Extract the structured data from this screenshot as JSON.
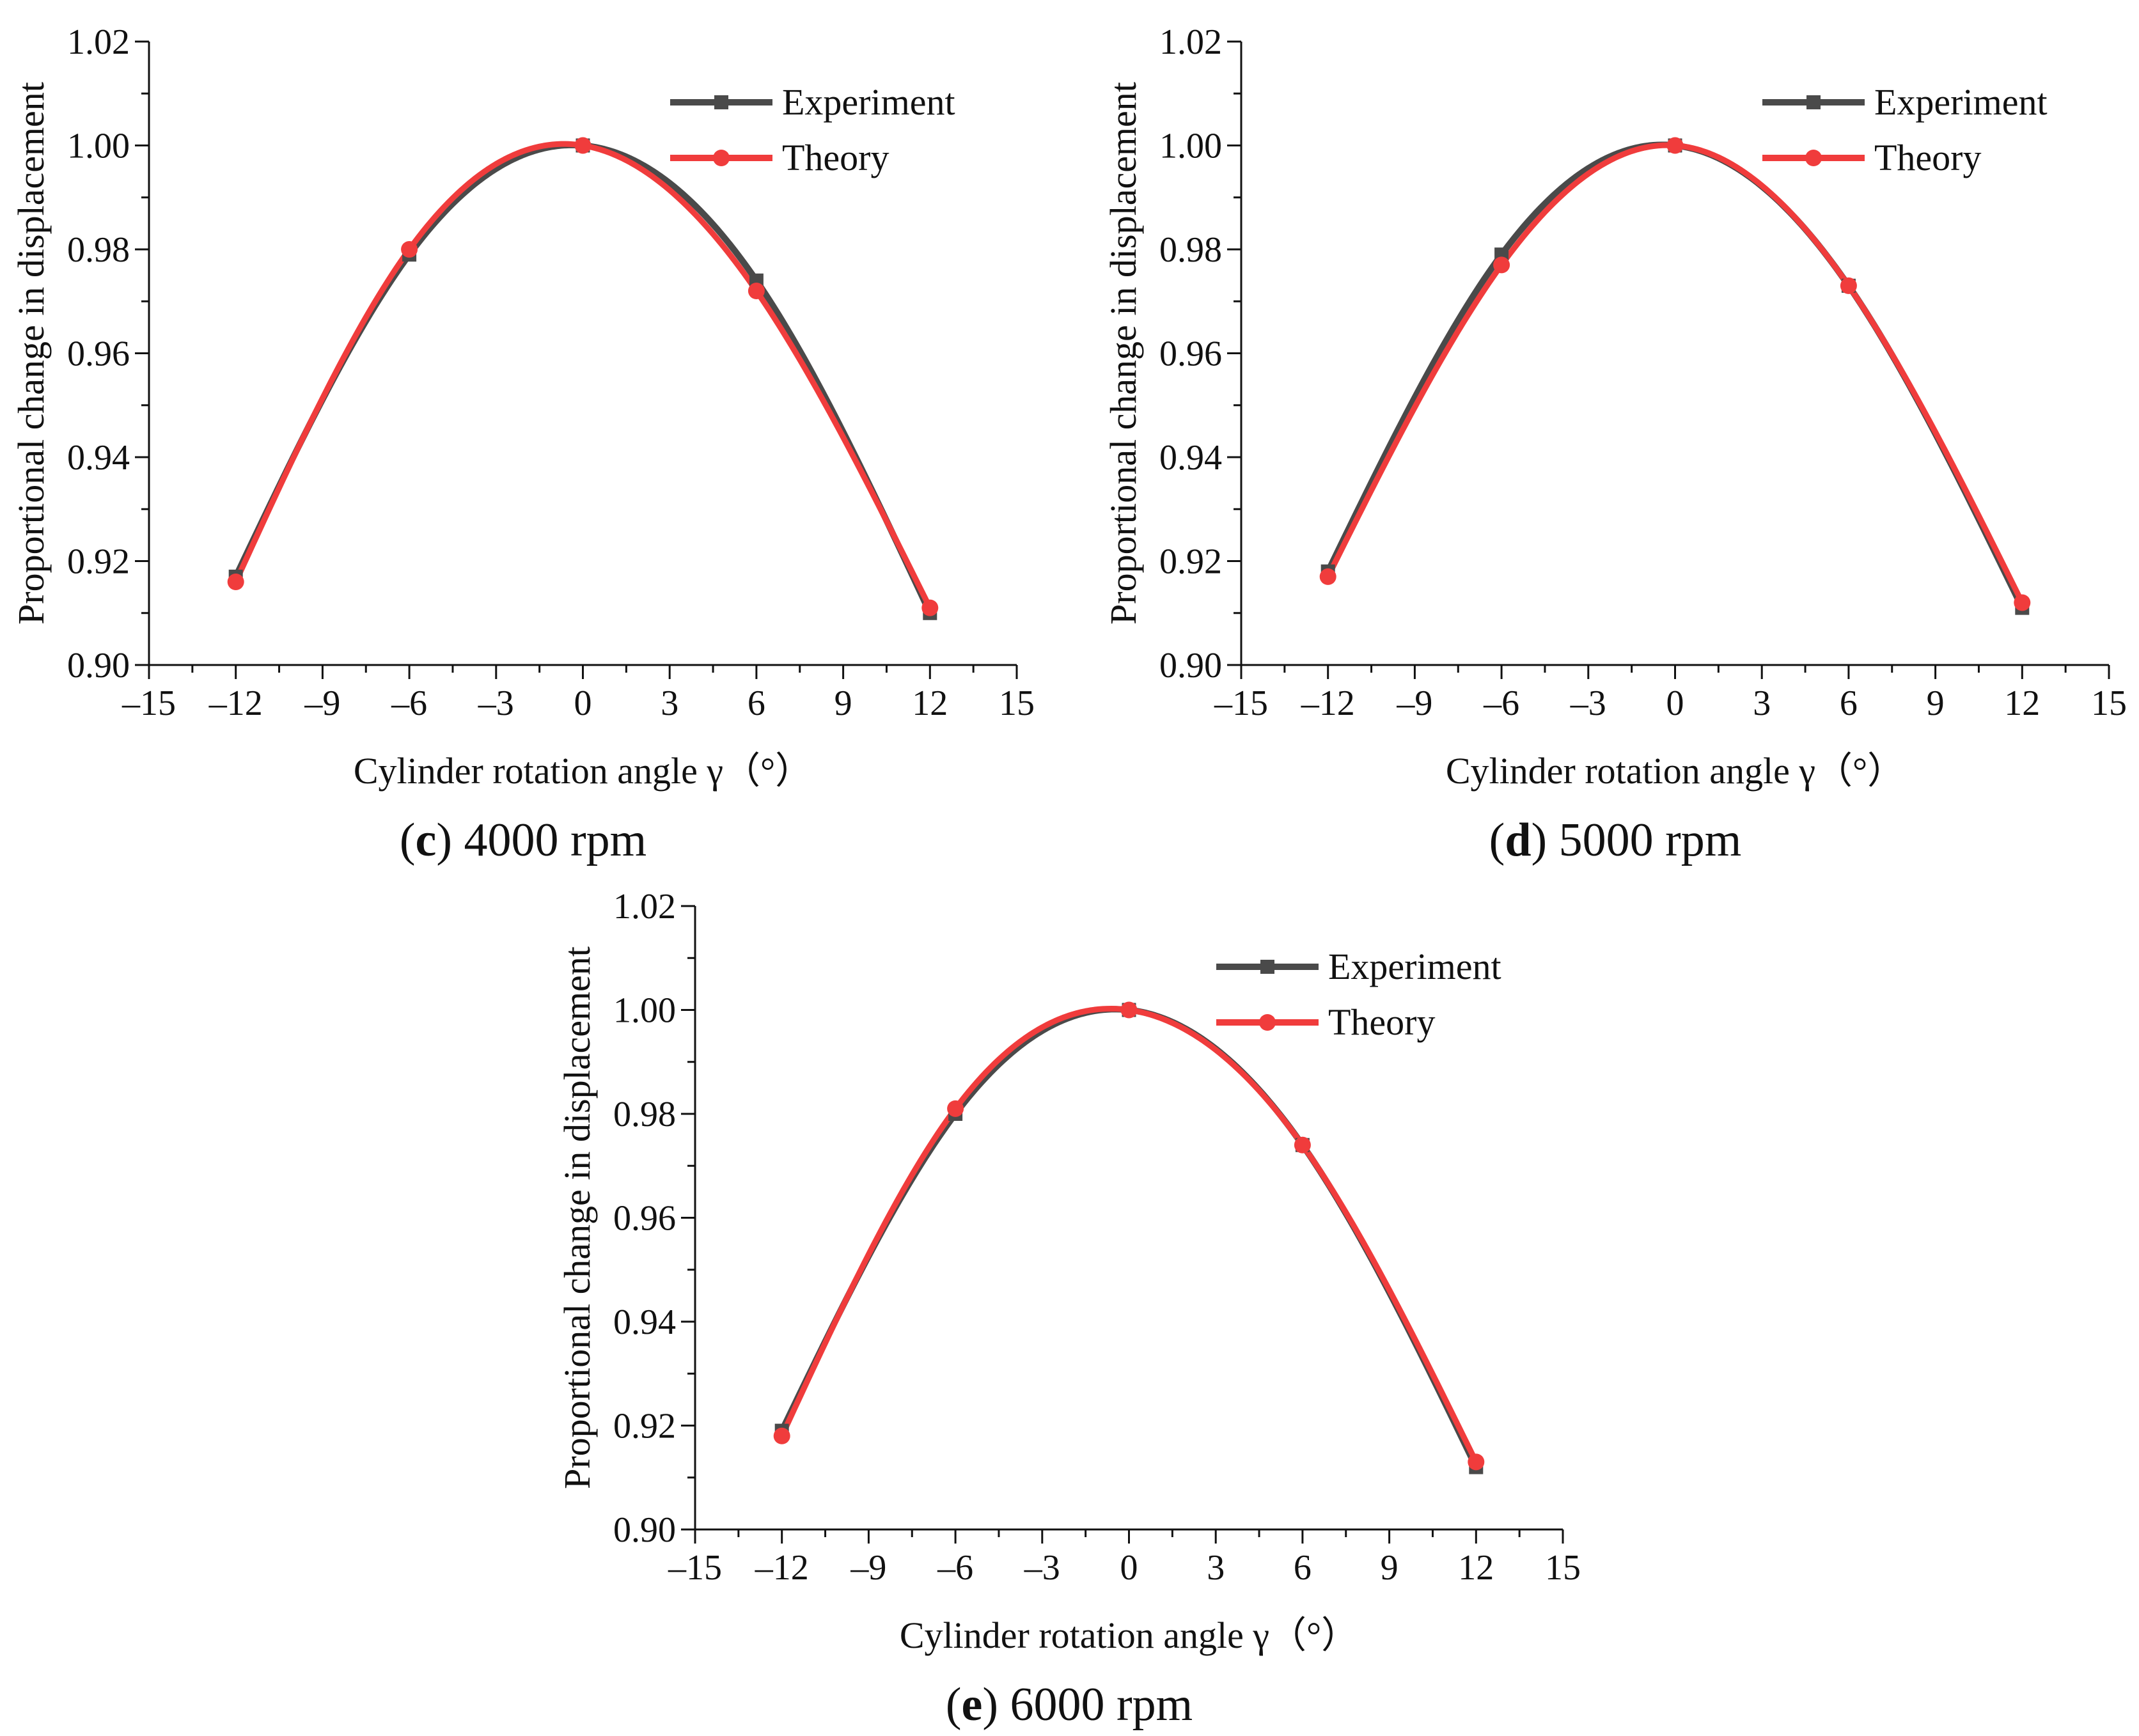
{
  "chart_data": [
    {
      "type": "line",
      "caption_letter": "c",
      "caption_text": " 4000 rpm",
      "xlabel": "Cylinder rotation angle γ（°）",
      "ylabel": "Proportional change in displacement",
      "xlim": [
        -15,
        15
      ],
      "ylim": [
        0.9,
        1.02
      ],
      "xticks": [
        -15,
        -12,
        -9,
        -6,
        -3,
        0,
        3,
        6,
        9,
        12,
        15
      ],
      "yticks": [
        0.9,
        0.92,
        0.94,
        0.96,
        0.98,
        1.0,
        1.02
      ],
      "ytick_labels": [
        "0.90",
        "0.92",
        "0.94",
        "0.96",
        "0.98",
        "1.00",
        "1.02"
      ],
      "legend_position": "top-right",
      "series": [
        {
          "name": "Experiment",
          "color": "#4a4a4a",
          "marker": "square",
          "x": [
            -12,
            -6,
            0,
            6,
            12
          ],
          "y": [
            0.917,
            0.979,
            1.0,
            0.974,
            0.91
          ]
        },
        {
          "name": "Theory",
          "color": "#f03c3c",
          "marker": "circle",
          "x": [
            -12,
            -6,
            0,
            6,
            12
          ],
          "y": [
            0.916,
            0.98,
            1.0,
            0.972,
            0.911
          ]
        }
      ]
    },
    {
      "type": "line",
      "caption_letter": "d",
      "caption_text": " 5000 rpm",
      "xlabel": "Cylinder rotation angle γ（°）",
      "ylabel": "Proportional change in displacement",
      "xlim": [
        -15,
        15
      ],
      "ylim": [
        0.9,
        1.02
      ],
      "xticks": [
        -15,
        -12,
        -9,
        -6,
        -3,
        0,
        3,
        6,
        9,
        12,
        15
      ],
      "yticks": [
        0.9,
        0.92,
        0.94,
        0.96,
        0.98,
        1.0,
        1.02
      ],
      "ytick_labels": [
        "0.90",
        "0.92",
        "0.94",
        "0.96",
        "0.98",
        "1.00",
        "1.02"
      ],
      "legend_position": "top-right",
      "series": [
        {
          "name": "Experiment",
          "color": "#4a4a4a",
          "marker": "square",
          "x": [
            -12,
            -6,
            0,
            6,
            12
          ],
          "y": [
            0.918,
            0.979,
            1.0,
            0.973,
            0.911
          ]
        },
        {
          "name": "Theory",
          "color": "#f03c3c",
          "marker": "circle",
          "x": [
            -12,
            -6,
            0,
            6,
            12
          ],
          "y": [
            0.917,
            0.977,
            1.0,
            0.973,
            0.912
          ]
        }
      ]
    },
    {
      "type": "line",
      "caption_letter": "e",
      "caption_text": " 6000 rpm",
      "xlabel": "Cylinder rotation angle γ（°）",
      "ylabel": "Proportional change in displacement",
      "xlim": [
        -15,
        15
      ],
      "ylim": [
        0.9,
        1.02
      ],
      "xticks": [
        -15,
        -12,
        -9,
        -6,
        -3,
        0,
        3,
        6,
        9,
        12,
        15
      ],
      "yticks": [
        0.9,
        0.92,
        0.94,
        0.96,
        0.98,
        1.0,
        1.02
      ],
      "ytick_labels": [
        "0.90",
        "0.92",
        "0.94",
        "0.96",
        "0.98",
        "1.00",
        "1.02"
      ],
      "legend_position": "top-right",
      "series": [
        {
          "name": "Experiment",
          "color": "#4a4a4a",
          "marker": "square",
          "x": [
            -12,
            -6,
            0,
            6,
            12
          ],
          "y": [
            0.919,
            0.98,
            1.0,
            0.974,
            0.912
          ]
        },
        {
          "name": "Theory",
          "color": "#f03c3c",
          "marker": "circle",
          "x": [
            -12,
            -6,
            0,
            6,
            12
          ],
          "y": [
            0.918,
            0.981,
            1.0,
            0.974,
            0.913
          ]
        }
      ]
    }
  ]
}
